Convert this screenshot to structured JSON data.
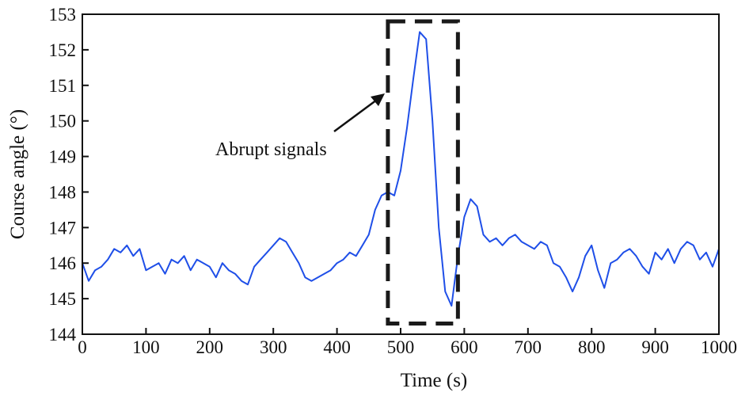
{
  "chart_data": {
    "type": "line",
    "title": "",
    "xlabel": "Time (s)",
    "ylabel": "Course angle (°)",
    "xlim": [
      0,
      1000
    ],
    "ylim": [
      144,
      153
    ],
    "xticks": [
      "0",
      "100",
      "200",
      "300",
      "400",
      "500",
      "600",
      "700",
      "800",
      "900",
      "1000"
    ],
    "yticks": [
      "144",
      "145",
      "146",
      "147",
      "148",
      "149",
      "150",
      "151",
      "152",
      "153"
    ],
    "grid": false,
    "series": [
      {
        "name": "Course angle",
        "color": "#1f4fe8",
        "x": [
          0,
          10,
          20,
          30,
          40,
          50,
          60,
          70,
          80,
          90,
          100,
          110,
          120,
          130,
          140,
          150,
          160,
          170,
          180,
          190,
          200,
          210,
          220,
          230,
          240,
          250,
          260,
          270,
          280,
          290,
          300,
          310,
          320,
          330,
          340,
          350,
          360,
          370,
          380,
          390,
          400,
          410,
          420,
          430,
          440,
          450,
          460,
          470,
          480,
          490,
          500,
          510,
          520,
          530,
          540,
          550,
          560,
          570,
          580,
          590,
          600,
          610,
          620,
          630,
          640,
          650,
          660,
          670,
          680,
          690,
          700,
          710,
          720,
          730,
          740,
          750,
          760,
          770,
          780,
          790,
          800,
          810,
          820,
          830,
          840,
          850,
          860,
          870,
          880,
          890,
          900,
          910,
          920,
          930,
          940,
          950,
          960,
          970,
          980,
          990,
          1000
        ],
        "y": [
          146.0,
          145.5,
          145.8,
          145.9,
          146.1,
          146.4,
          146.3,
          146.5,
          146.2,
          146.4,
          145.8,
          145.9,
          146.0,
          145.7,
          146.1,
          146.0,
          146.2,
          145.8,
          146.1,
          146.0,
          145.9,
          145.6,
          146.0,
          145.8,
          145.7,
          145.5,
          145.4,
          145.9,
          146.1,
          146.3,
          146.5,
          146.7,
          146.6,
          146.3,
          146.0,
          145.6,
          145.5,
          145.6,
          145.7,
          145.8,
          146.0,
          146.1,
          146.3,
          146.2,
          146.5,
          146.8,
          147.5,
          147.9,
          148.0,
          147.9,
          148.6,
          149.8,
          151.2,
          152.5,
          152.3,
          150.0,
          147.0,
          145.2,
          144.8,
          146.2,
          147.3,
          147.8,
          147.6,
          146.8,
          146.6,
          146.7,
          146.5,
          146.7,
          146.8,
          146.6,
          146.5,
          146.4,
          146.6,
          146.5,
          146.0,
          145.9,
          145.6,
          145.2,
          145.6,
          146.2,
          146.5,
          145.8,
          145.3,
          146.0,
          146.1,
          146.3,
          146.4,
          146.2,
          145.9,
          145.7,
          146.3,
          146.1,
          146.4,
          146.0,
          146.4,
          146.6,
          146.5,
          146.1,
          146.3,
          145.9,
          146.4
        ]
      }
    ],
    "annotations": [
      {
        "text": "Abrupt signals",
        "box_x_range": [
          480,
          590
        ],
        "box_y_range": [
          144.3,
          152.8
        ]
      }
    ]
  }
}
